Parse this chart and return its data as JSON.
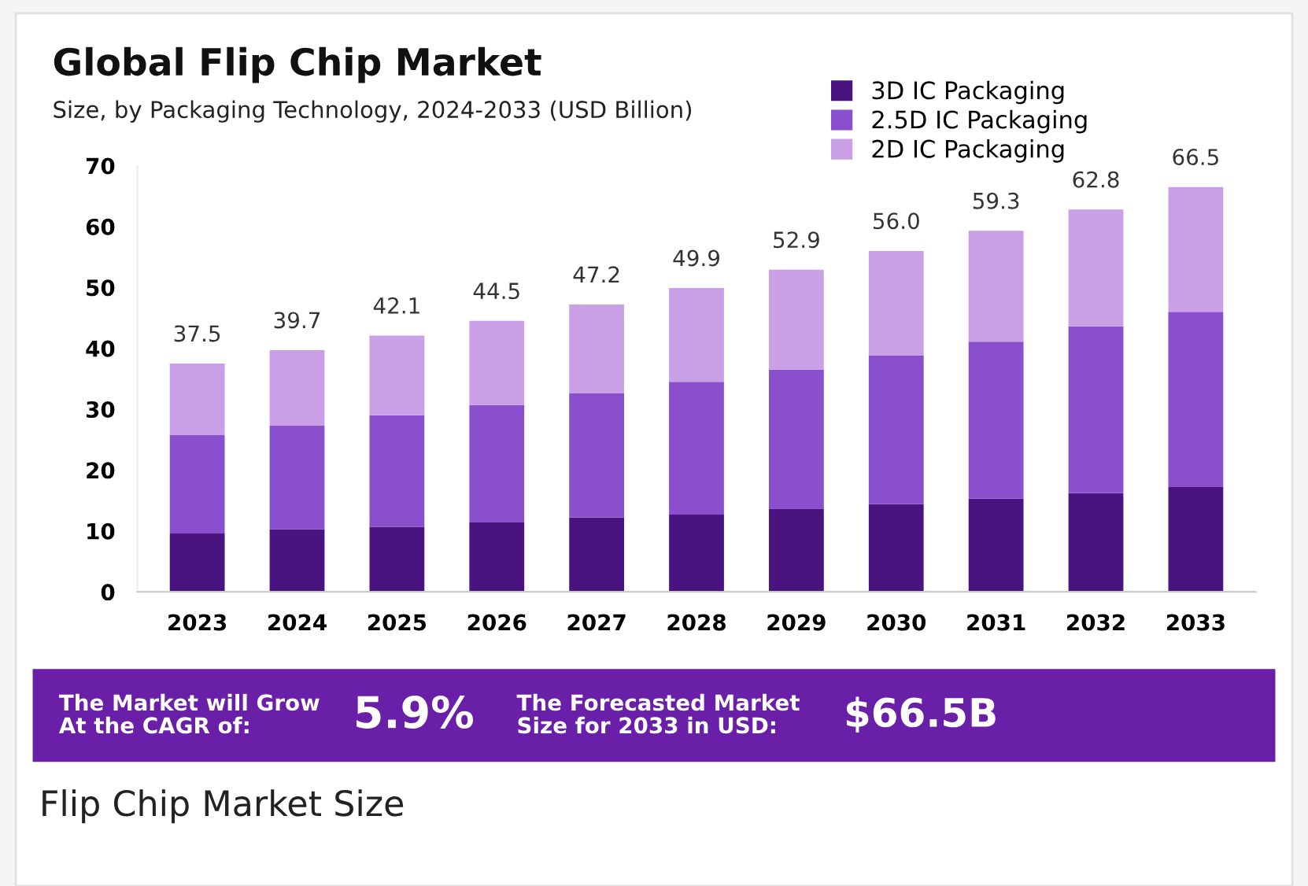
{
  "chart_data": {
    "type": "bar",
    "stacked": true,
    "title": "Global Flip Chip Market",
    "subtitle": "Size, by Packaging Technology, 2024-2033 (USD Billion)",
    "categories": [
      "2023",
      "2024",
      "2025",
      "2026",
      "2027",
      "2028",
      "2029",
      "2030",
      "2031",
      "2032",
      "2033"
    ],
    "series": [
      {
        "name": "3D IC Packaging",
        "color": "#4a1480",
        "values": [
          9.6,
          10.3,
          10.7,
          11.4,
          12.2,
          12.7,
          13.6,
          14.4,
          15.3,
          16.2,
          17.2
        ]
      },
      {
        "name": "2.5D IC Packaging",
        "color": "#8a4fcc",
        "values": [
          16.2,
          17.0,
          18.3,
          19.3,
          20.4,
          21.8,
          22.9,
          24.4,
          25.8,
          27.4,
          28.8
        ]
      },
      {
        "name": "2D IC Packaging",
        "color": "#c9a0e6",
        "values": [
          11.7,
          12.4,
          13.1,
          13.8,
          14.6,
          15.4,
          16.4,
          17.2,
          18.2,
          19.2,
          20.5
        ]
      }
    ],
    "totals": [
      "37.5",
      "39.7",
      "42.1",
      "44.5",
      "47.2",
      "49.9",
      "52.9",
      "56.0",
      "59.3",
      "62.8",
      "66.5"
    ],
    "ylim": [
      0,
      70
    ],
    "yticks": [
      0,
      10,
      20,
      30,
      40,
      50,
      60,
      70
    ],
    "grid": false,
    "legend": "top right",
    "annotations": [
      "The Market will Grow\nAt the CAGR of:",
      "5.9%",
      "The Forecasted Market\nSize for 2033 in USD:",
      "$66.5B",
      "Flip Chip Market Size"
    ]
  }
}
